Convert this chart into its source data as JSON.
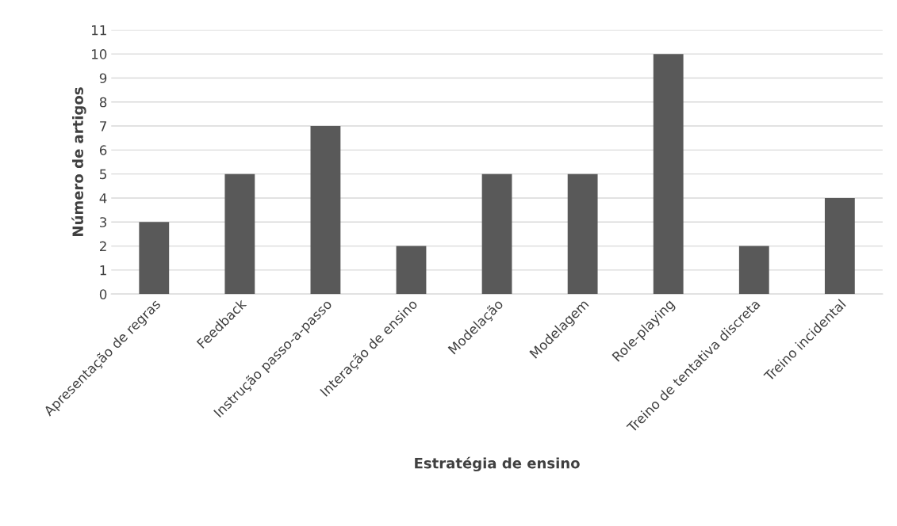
{
  "chart_data": {
    "type": "bar",
    "xlabel": "Estratégia de ensino",
    "ylabel": "Número de artigos",
    "categories": [
      "Apresentação de regras",
      "Feedback",
      "Instrução passo-a-passo",
      "Interação de ensino",
      "Modelação",
      "Modelagem",
      "Role-playing",
      "Treino de tentativa discreta",
      "Treino incidental"
    ],
    "values": [
      3,
      5,
      7,
      2,
      5,
      5,
      10,
      2,
      4
    ],
    "color": "#595959",
    "ylim": [
      0,
      11
    ],
    "yticks": [
      0,
      1,
      2,
      3,
      4,
      5,
      6,
      7,
      8,
      9,
      10,
      11
    ],
    "grid": "y",
    "legend": false
  }
}
